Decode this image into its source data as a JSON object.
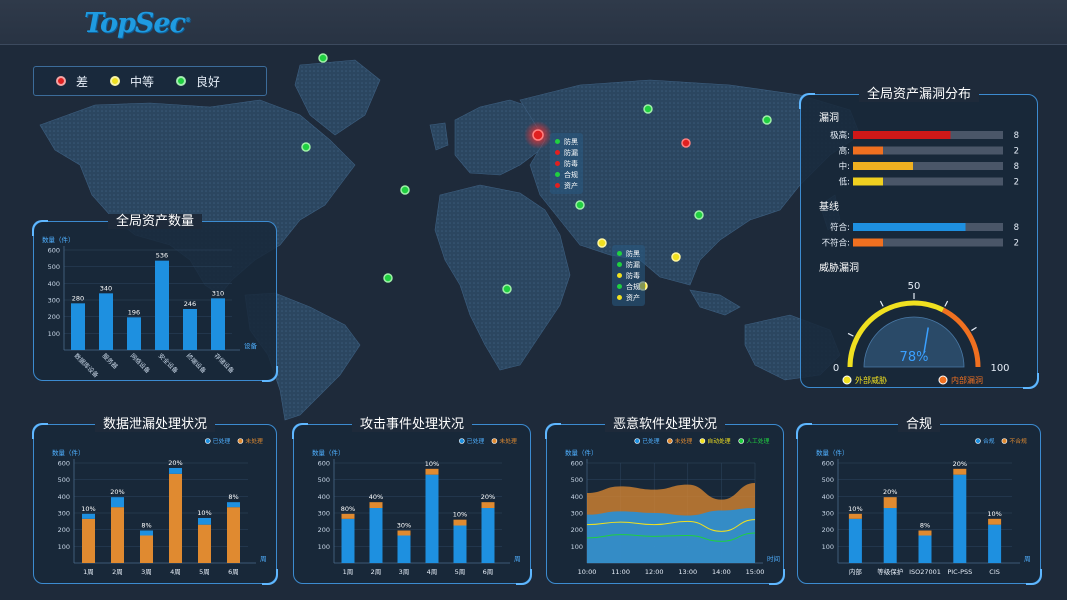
{
  "logo": "TopSec",
  "legend": [
    {
      "label": "差",
      "color": "#e02020"
    },
    {
      "label": "中等",
      "color": "#f0e020"
    },
    {
      "label": "良好",
      "color": "#20d040"
    }
  ],
  "popups": [
    {
      "items": [
        {
          "label": "防黑",
          "color": "#20d040"
        },
        {
          "label": "防漏",
          "color": "#e02020"
        },
        {
          "label": "防毒",
          "color": "#e02020"
        },
        {
          "label": "合规",
          "color": "#20d040"
        },
        {
          "label": "资产",
          "color": "#e02020"
        }
      ]
    },
    {
      "items": [
        {
          "label": "防黑",
          "color": "#20d040"
        },
        {
          "label": "防漏",
          "color": "#20d040"
        },
        {
          "label": "防毒",
          "color": "#f0e020"
        },
        {
          "label": "合规",
          "color": "#20d040"
        },
        {
          "label": "资产",
          "color": "#f0e020"
        }
      ]
    }
  ],
  "asset_panel": {
    "title": "全局资产数量",
    "ylabel": "数量（件）",
    "xlabel": "设备",
    "chart_data": {
      "type": "bar",
      "categories": [
        "数据库设备",
        "服务器",
        "网络设备",
        "安全设备",
        "终端设备",
        "存储设备"
      ],
      "values": [
        280,
        340,
        196,
        536,
        246,
        310
      ],
      "ylim": [
        0,
        600
      ],
      "yticks": [
        100,
        200,
        300,
        400,
        500,
        600
      ],
      "color": "#1e90e0"
    }
  },
  "vuln_panel": {
    "title": "全局资产漏洞分布",
    "section_vuln": "漏洞",
    "vuln_rows": [
      {
        "label": "极高:",
        "fill": 0.65,
        "color": "#d01818",
        "value": "8"
      },
      {
        "label": "高:",
        "fill": 0.2,
        "color": "#f07020",
        "value": "2"
      },
      {
        "label": "中:",
        "fill": 0.4,
        "color": "#f0b020",
        "value": "8"
      },
      {
        "label": "低:",
        "fill": 0.2,
        "color": "#f0d020",
        "value": "2"
      }
    ],
    "section_baseline": "基线",
    "baseline_rows": [
      {
        "label": "符合:",
        "fill": 0.75,
        "color": "#1e90e0",
        "value": "8"
      },
      {
        "label": "不符合:",
        "fill": 0.2,
        "color": "#f07020",
        "value": "2"
      }
    ],
    "section_threat": "威胁漏洞",
    "gauge": {
      "value": "78%",
      "min": "0",
      "mid": "50",
      "max": "100",
      "legend": [
        {
          "label": "外部威胁",
          "color": "#f0e020"
        },
        {
          "label": "内部漏洞",
          "color": "#f07020"
        }
      ]
    }
  },
  "bottom_charts": [
    {
      "title": "数据泄漏处理状况",
      "ylabel": "数量（件）",
      "xlabel": "周",
      "legend": [
        {
          "label": "已处理",
          "color": "#1e90e0"
        },
        {
          "label": "未处理",
          "color": "#e08a30"
        }
      ],
      "chart_data": {
        "type": "bar",
        "categories": [
          "1周",
          "2周",
          "3周",
          "4周",
          "5周",
          "6周"
        ],
        "series": [
          {
            "name": "已处理",
            "values": [
              30,
              60,
              30,
              35,
              40,
              30
            ]
          },
          {
            "name": "未处理",
            "values": [
              265,
              335,
              165,
              535,
              230,
              335
            ]
          }
        ],
        "labels": [
          "10%",
          "20%",
          "8%",
          "20%",
          "10%",
          "8%"
        ],
        "ylim": [
          0,
          600
        ],
        "yticks": [
          100,
          200,
          300,
          400,
          500,
          600
        ]
      }
    },
    {
      "title": "攻击事件处理状况",
      "ylabel": "数量（件）",
      "xlabel": "周",
      "legend": [
        {
          "label": "已处理",
          "color": "#1e90e0"
        },
        {
          "label": "未处理",
          "color": "#e08a30"
        }
      ],
      "chart_data": {
        "type": "bar",
        "categories": [
          "1周",
          "2周",
          "3周",
          "4周",
          "5周",
          "6周"
        ],
        "series": [
          {
            "name": "已处理",
            "values": [
              265,
              330,
              165,
              530,
              225,
              330
            ]
          },
          {
            "name": "未处理",
            "values": [
              30,
              35,
              30,
              35,
              35,
              35
            ]
          }
        ],
        "labels": [
          "80%",
          "40%",
          "30%",
          "10%",
          "10%",
          "20%"
        ],
        "ylim": [
          0,
          600
        ],
        "yticks": [
          100,
          200,
          300,
          400,
          500,
          600
        ]
      }
    },
    {
      "title": "恶意软件处理状况",
      "ylabel": "数量（件）",
      "xlabel": "时间",
      "legend": [
        {
          "label": "已处理",
          "color": "#1e90e0"
        },
        {
          "label": "未处理",
          "color": "#e08a30"
        },
        {
          "label": "自动处理",
          "color": "#f0e020"
        },
        {
          "label": "人工处理",
          "color": "#20d040"
        }
      ],
      "chart_data": {
        "type": "area",
        "x": [
          "10:00",
          "11:00",
          "12:00",
          "13:00",
          "14:00",
          "15:00"
        ],
        "series": [
          {
            "name": "已处理",
            "values": [
              290,
              310,
              300,
              285,
              315,
              330
            ]
          },
          {
            "name": "未处理",
            "values": [
              420,
              460,
              440,
              470,
              380,
              480
            ]
          },
          {
            "name": "自动处理",
            "values": [
              230,
              245,
              230,
              250,
              190,
              260
            ]
          },
          {
            "name": "人工处理",
            "values": [
              150,
              170,
              160,
              165,
              130,
              180
            ]
          }
        ],
        "ylim": [
          0,
          600
        ],
        "yticks": [
          100,
          200,
          300,
          400,
          500,
          600
        ]
      }
    },
    {
      "title": "合规",
      "ylabel": "数量（件）",
      "xlabel": "周",
      "legend": [
        {
          "label": "合规",
          "color": "#1e90e0"
        },
        {
          "label": "不合规",
          "color": "#e08a30"
        }
      ],
      "chart_data": {
        "type": "bar",
        "categories": [
          "内部",
          "等级保护",
          "ISO27001",
          "PIC-PSS",
          "CIS"
        ],
        "series": [
          {
            "name": "合规",
            "values": [
              265,
              330,
              165,
              530,
              230
            ]
          },
          {
            "name": "不合规",
            "values": [
              30,
              65,
              30,
              35,
              35
            ]
          }
        ],
        "labels": [
          "10%",
          "20%",
          "8%",
          "20%",
          "10%"
        ],
        "ylim": [
          0,
          600
        ],
        "yticks": [
          100,
          200,
          300,
          400,
          500,
          600
        ]
      }
    }
  ]
}
